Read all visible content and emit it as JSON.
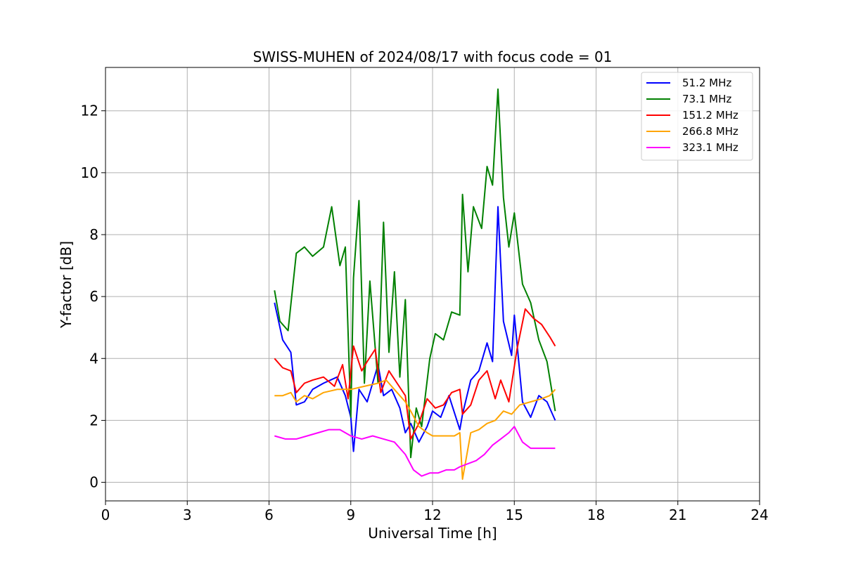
{
  "chart_data": {
    "type": "line",
    "title": "SWISS-MUHEN of 2024/08/17 with focus code = 01",
    "xlabel": "Universal Time [h]",
    "ylabel": "Y-factor [dB]",
    "xlim": [
      0,
      24
    ],
    "ylim": [
      -0.6,
      13.4
    ],
    "xticks": [
      0,
      3,
      6,
      9,
      12,
      15,
      18,
      21,
      24
    ],
    "xtick_labels": [
      "0",
      "3",
      "6",
      "9",
      "12",
      "15",
      "18",
      "21",
      "24"
    ],
    "yticks": [
      0,
      2,
      4,
      6,
      8,
      10,
      12
    ],
    "ytick_labels": [
      "0",
      "2",
      "4",
      "6",
      "8",
      "10",
      "12"
    ],
    "grid": true,
    "legend_position": "top-right",
    "series": [
      {
        "name": " 51.2 MHz",
        "color": "#0000ff",
        "x": [
          6.2,
          6.5,
          6.8,
          7.0,
          7.3,
          7.6,
          8.0,
          8.5,
          8.8,
          9.0,
          9.1,
          9.3,
          9.6,
          10.0,
          10.2,
          10.5,
          10.8,
          11.0,
          11.2,
          11.5,
          11.8,
          12.0,
          12.3,
          12.6,
          13.0,
          13.1,
          13.4,
          13.7,
          14.0,
          14.2,
          14.4,
          14.6,
          14.9,
          15.0,
          15.3,
          15.6,
          15.9,
          16.2,
          16.5
        ],
        "values": [
          5.8,
          4.6,
          4.2,
          2.5,
          2.6,
          3.0,
          3.2,
          3.4,
          2.8,
          2.1,
          1.0,
          3.0,
          2.6,
          3.8,
          2.8,
          3.0,
          2.4,
          1.6,
          1.9,
          1.3,
          1.8,
          2.3,
          2.1,
          2.8,
          1.7,
          2.2,
          3.3,
          3.6,
          4.5,
          3.9,
          8.9,
          5.2,
          4.1,
          5.4,
          2.6,
          2.1,
          2.8,
          2.6,
          2.0
        ]
      },
      {
        "name": " 73.1 MHz",
        "color": "#008000",
        "x": [
          6.2,
          6.4,
          6.7,
          7.0,
          7.3,
          7.6,
          8.0,
          8.3,
          8.6,
          8.8,
          9.0,
          9.1,
          9.3,
          9.5,
          9.7,
          10.0,
          10.2,
          10.4,
          10.6,
          10.8,
          11.0,
          11.2,
          11.4,
          11.6,
          11.9,
          12.1,
          12.4,
          12.7,
          13.0,
          13.1,
          13.3,
          13.5,
          13.8,
          14.0,
          14.2,
          14.4,
          14.6,
          14.8,
          15.0,
          15.3,
          15.6,
          15.9,
          16.2,
          16.5
        ],
        "values": [
          6.2,
          5.2,
          4.9,
          7.4,
          7.6,
          7.3,
          7.6,
          8.9,
          7.0,
          7.6,
          2.1,
          6.6,
          9.1,
          3.2,
          6.5,
          3.2,
          8.4,
          4.2,
          6.8,
          3.4,
          5.9,
          0.8,
          2.4,
          1.8,
          4.0,
          4.8,
          4.6,
          5.5,
          5.4,
          9.3,
          6.8,
          8.9,
          8.2,
          10.2,
          9.6,
          12.7,
          9.2,
          7.6,
          8.7,
          6.4,
          5.8,
          4.6,
          3.9,
          2.3
        ]
      },
      {
        "name": "151.2 MHz",
        "color": "#ff0000",
        "x": [
          6.2,
          6.5,
          6.8,
          7.0,
          7.3,
          7.6,
          8.0,
          8.4,
          8.7,
          8.9,
          9.1,
          9.4,
          9.6,
          9.9,
          10.1,
          10.4,
          10.7,
          11.0,
          11.2,
          11.5,
          11.8,
          12.1,
          12.4,
          12.7,
          13.0,
          13.1,
          13.4,
          13.7,
          14.0,
          14.3,
          14.5,
          14.8,
          15.1,
          15.4,
          15.7,
          16.0,
          16.3,
          16.5
        ],
        "values": [
          4.0,
          3.7,
          3.6,
          2.9,
          3.2,
          3.3,
          3.4,
          3.1,
          3.8,
          2.7,
          4.4,
          3.6,
          3.9,
          4.3,
          2.9,
          3.6,
          3.2,
          2.8,
          1.4,
          1.9,
          2.7,
          2.4,
          2.5,
          2.9,
          3.0,
          2.2,
          2.5,
          3.3,
          3.6,
          2.7,
          3.3,
          2.6,
          4.3,
          5.6,
          5.3,
          5.1,
          4.7,
          4.4
        ]
      },
      {
        "name": "266.8 MHz",
        "color": "#ffa500",
        "x": [
          6.2,
          6.5,
          6.8,
          7.0,
          7.3,
          7.6,
          8.0,
          8.5,
          9.0,
          9.5,
          10.0,
          10.3,
          10.7,
          11.0,
          11.2,
          11.5,
          11.8,
          12.0,
          12.4,
          12.8,
          13.0,
          13.1,
          13.4,
          13.7,
          14.0,
          14.3,
          14.6,
          14.9,
          15.2,
          15.6,
          16.0,
          16.3,
          16.5
        ],
        "values": [
          2.8,
          2.8,
          2.9,
          2.6,
          2.8,
          2.7,
          2.9,
          3.0,
          3.0,
          3.1,
          3.2,
          3.3,
          2.9,
          2.6,
          2.3,
          1.8,
          1.6,
          1.5,
          1.5,
          1.5,
          1.6,
          0.1,
          1.6,
          1.7,
          1.9,
          2.0,
          2.3,
          2.2,
          2.5,
          2.6,
          2.7,
          2.8,
          3.0
        ]
      },
      {
        "name": "323.1 MHz",
        "color": "#ff00ff",
        "x": [
          6.2,
          6.6,
          7.0,
          7.4,
          7.8,
          8.2,
          8.6,
          9.0,
          9.4,
          9.8,
          10.2,
          10.6,
          11.0,
          11.3,
          11.6,
          11.9,
          12.2,
          12.5,
          12.8,
          13.0,
          13.3,
          13.6,
          13.9,
          14.2,
          14.5,
          14.8,
          15.0,
          15.3,
          15.6,
          15.9,
          16.2,
          16.5
        ],
        "values": [
          1.5,
          1.4,
          1.4,
          1.5,
          1.6,
          1.7,
          1.7,
          1.5,
          1.4,
          1.5,
          1.4,
          1.3,
          0.9,
          0.4,
          0.2,
          0.3,
          0.3,
          0.4,
          0.4,
          0.5,
          0.6,
          0.7,
          0.9,
          1.2,
          1.4,
          1.6,
          1.8,
          1.3,
          1.1,
          1.1,
          1.1,
          1.1
        ]
      }
    ]
  }
}
